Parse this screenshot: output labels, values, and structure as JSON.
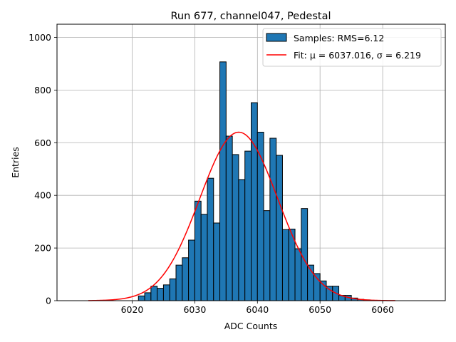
{
  "chart_data": {
    "type": "bar",
    "title": "Run 677, channel047, Pedestal",
    "xlabel": "ADC Counts",
    "ylabel": "Entries",
    "xlim": [
      6008,
      6070
    ],
    "ylim": [
      0,
      1050
    ],
    "xticks": [
      6020,
      6030,
      6040,
      6050,
      6060
    ],
    "yticks": [
      0,
      200,
      400,
      600,
      800,
      1000
    ],
    "grid": true,
    "legend_position": "top-right",
    "bin_width": 1,
    "bins": [
      {
        "x": 6021,
        "y": 18
      },
      {
        "x": 6022,
        "y": 30
      },
      {
        "x": 6023,
        "y": 55
      },
      {
        "x": 6024,
        "y": 47
      },
      {
        "x": 6025,
        "y": 60
      },
      {
        "x": 6026,
        "y": 83
      },
      {
        "x": 6027,
        "y": 135
      },
      {
        "x": 6028,
        "y": 163
      },
      {
        "x": 6029,
        "y": 230
      },
      {
        "x": 6030,
        "y": 378
      },
      {
        "x": 6031,
        "y": 328
      },
      {
        "x": 6032,
        "y": 465
      },
      {
        "x": 6033,
        "y": 295
      },
      {
        "x": 6034,
        "y": 907
      },
      {
        "x": 6035,
        "y": 625
      },
      {
        "x": 6036,
        "y": 555
      },
      {
        "x": 6037,
        "y": 460
      },
      {
        "x": 6038,
        "y": 568
      },
      {
        "x": 6039,
        "y": 752
      },
      {
        "x": 6040,
        "y": 640
      },
      {
        "x": 6041,
        "y": 342
      },
      {
        "x": 6042,
        "y": 617
      },
      {
        "x": 6043,
        "y": 552
      },
      {
        "x": 6044,
        "y": 270
      },
      {
        "x": 6045,
        "y": 272
      },
      {
        "x": 6046,
        "y": 197
      },
      {
        "x": 6047,
        "y": 350
      },
      {
        "x": 6048,
        "y": 135
      },
      {
        "x": 6049,
        "y": 103
      },
      {
        "x": 6050,
        "y": 75
      },
      {
        "x": 6051,
        "y": 55
      },
      {
        "x": 6052,
        "y": 55
      },
      {
        "x": 6053,
        "y": 20
      },
      {
        "x": 6054,
        "y": 20
      },
      {
        "x": 6055,
        "y": 10
      },
      {
        "x": 6056,
        "y": 5
      },
      {
        "x": 6057,
        "y": 3
      },
      {
        "x": 6058,
        "y": 1
      }
    ],
    "series": [
      {
        "name": "Samples: RMS=6.12",
        "kind": "histogram",
        "color": "#1f77b4",
        "edgecolor": "#000000"
      },
      {
        "name": "Fit: μ = 6037.016, σ = 6.219",
        "kind": "gaussian",
        "color": "#ff0000",
        "mu": 6037.016,
        "sigma": 6.219,
        "amplitude": 640,
        "x_range": [
          6013,
          6062
        ]
      }
    ]
  }
}
